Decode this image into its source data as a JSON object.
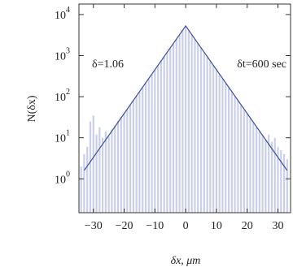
{
  "chart_data": {
    "type": "histogram",
    "xlabel": "δx, μm",
    "ylabel": "N(δx)",
    "log_y": true,
    "color": "#c9cfea",
    "bins": [
      -34.5,
      -33.5,
      -32.5,
      -31.5,
      -30.5,
      -29.5,
      -28.5,
      -27.5,
      -26.5,
      -25.5,
      -24.5,
      -23.5,
      -22.5,
      -21.5,
      -20.5,
      -19.5,
      -18.5,
      -17.5,
      -16.5,
      -15.5,
      -14.5,
      -13.5,
      -12.5,
      -11.5,
      -10.5,
      -9.5,
      -8.5,
      -7.5,
      -6.5,
      -5.5,
      -4.5,
      -3.5,
      -2.5,
      -1.5,
      -0.5,
      0.5,
      1.5,
      2.5,
      3.5,
      4.5,
      5.5,
      6.5,
      7.5,
      8.5,
      9.5,
      10.5,
      11.5,
      12.5,
      13.5,
      14.5,
      15.5,
      16.5,
      17.5,
      18.5,
      19.5,
      20.5,
      21.5,
      22.5,
      23.5,
      24.5,
      25.5,
      26.5,
      27.5,
      28.5,
      29.5,
      30.5,
      31.5,
      32.5,
      33.5
    ],
    "counts": [
      2,
      4,
      6,
      25,
      35,
      12,
      18,
      10,
      14,
      11,
      16,
      20,
      26,
      32,
      40,
      50,
      64,
      82,
      104,
      133,
      170,
      217,
      277,
      354,
      453,
      580,
      742,
      948,
      1212,
      1552,
      1982,
      2532,
      3242,
      4147,
      5300,
      4143,
      3238,
      2528,
      1978,
      1548,
      1208,
      944,
      738,
      576,
      451,
      352,
      275,
      215,
      168,
      131,
      102,
      80,
      62,
      48,
      38,
      30,
      23,
      18,
      14,
      12,
      9,
      12,
      8,
      10,
      6,
      5,
      4,
      3
    ],
    "fit": {
      "type": "line",
      "color": "#3a4f9e",
      "x": [
        -33,
        0,
        33
      ],
      "values": [
        1.6,
        5300,
        1.6
      ]
    },
    "xlim": [
      -34.7,
      34.1
    ],
    "xticks": [
      {
        "value": -30,
        "label": "−30"
      },
      {
        "value": -20,
        "label": "−20"
      },
      {
        "value": -10,
        "label": "−10"
      },
      0,
      10,
      20,
      30
    ],
    "ylim": [
      0.15,
      18000
    ],
    "yticks": [
      {
        "value": 1,
        "label": "10",
        "exponent": "0"
      },
      {
        "value": 10,
        "label": "10",
        "exponent": "1"
      },
      {
        "value": 100,
        "label": "10",
        "exponent": "2"
      },
      {
        "value": 1000,
        "label": "10",
        "exponent": "3"
      },
      {
        "value": 10000,
        "label": "10",
        "exponent": "4"
      }
    ],
    "annotations": [
      "δ=1.06",
      "δt=600 sec"
    ]
  }
}
